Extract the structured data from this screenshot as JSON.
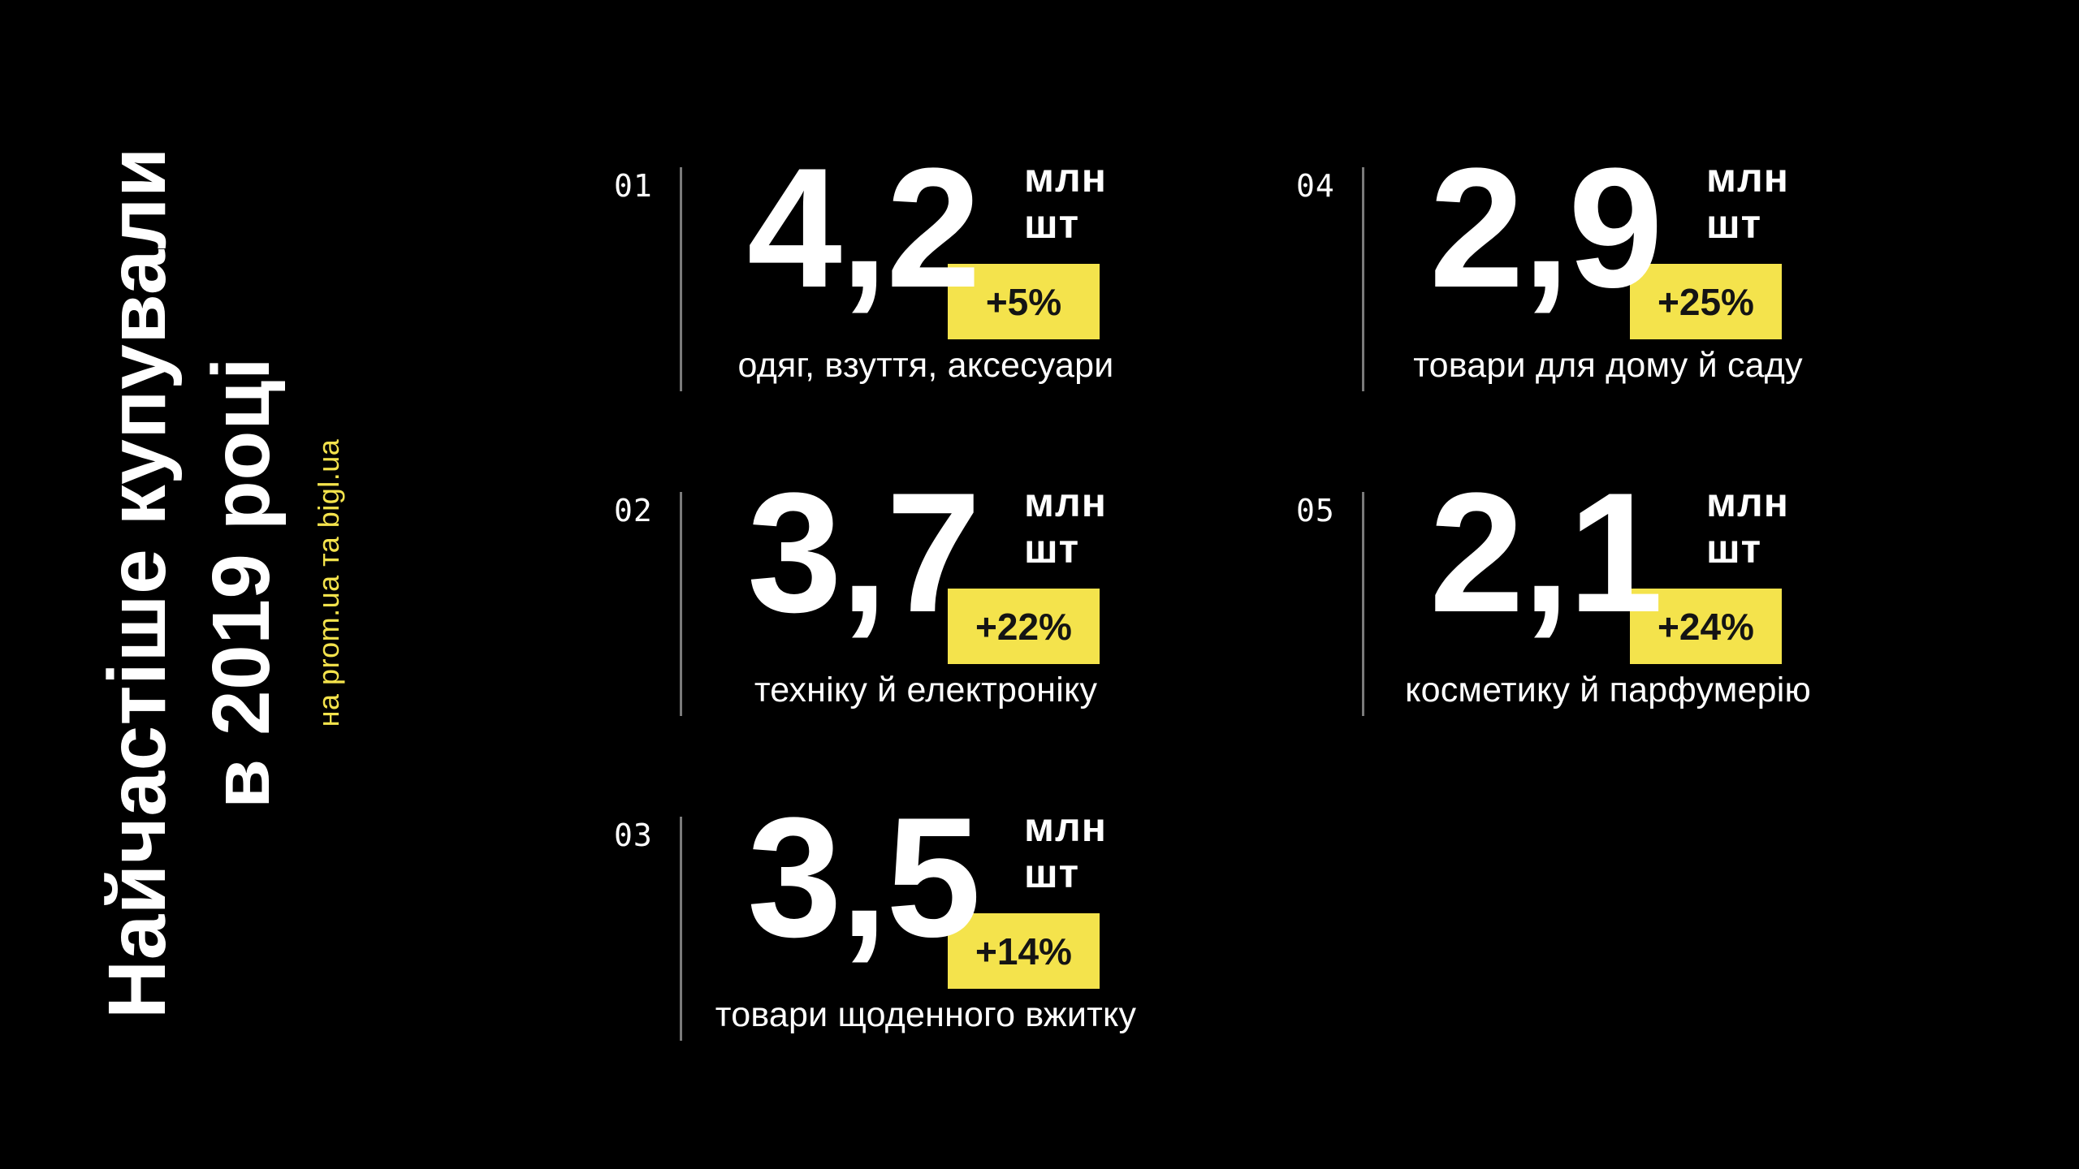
{
  "page": {
    "background": "#000000"
  },
  "colors": {
    "accent_yellow": "#F4E34C",
    "text_white": "#FFFFFF",
    "divider_gray": "#7A7A7A",
    "badge_text_black": "#141414"
  },
  "sidebar": {
    "title_line1": "Найчастіше купували",
    "title_line2": "в 2019 році",
    "subtitle": "на prom.ua та bigl.ua"
  },
  "stats": [
    {
      "index": "01",
      "value": "4,2",
      "unit_line1": "млн",
      "unit_line2": "шт",
      "growth": "+5%",
      "label": "одяг, взуття, аксесуари"
    },
    {
      "index": "02",
      "value": "3,7",
      "unit_line1": "млн",
      "unit_line2": "шт",
      "growth": "+22%",
      "label": "техніку й електроніку"
    },
    {
      "index": "03",
      "value": "3,5",
      "unit_line1": "млн",
      "unit_line2": "шт",
      "growth": "+14%",
      "label": "товари щоденного вжитку"
    },
    {
      "index": "04",
      "value": "2,9",
      "unit_line1": "млн",
      "unit_line2": "шт",
      "growth": "+25%",
      "label": "товари для дому й саду"
    },
    {
      "index": "05",
      "value": "2,1",
      "unit_line1": "млн",
      "unit_line2": "шт",
      "growth": "+24%",
      "label": "косметику й парфумерію"
    }
  ],
  "chart_data": {
    "type": "table",
    "title": "Найчастіше купували в 2019 році",
    "subtitle": "на prom.ua та bigl.ua",
    "unit": "млн шт",
    "categories": [
      "одяг, взуття, аксесуари",
      "техніку й електроніку",
      "товари щоденного вжитку",
      "товари для дому й саду",
      "косметику й парфумерію"
    ],
    "values": [
      4.2,
      3.7,
      3.5,
      2.9,
      2.1
    ],
    "growth_percent": [
      5,
      22,
      14,
      25,
      24
    ],
    "rank": [
      "01",
      "02",
      "03",
      "04",
      "05"
    ]
  }
}
